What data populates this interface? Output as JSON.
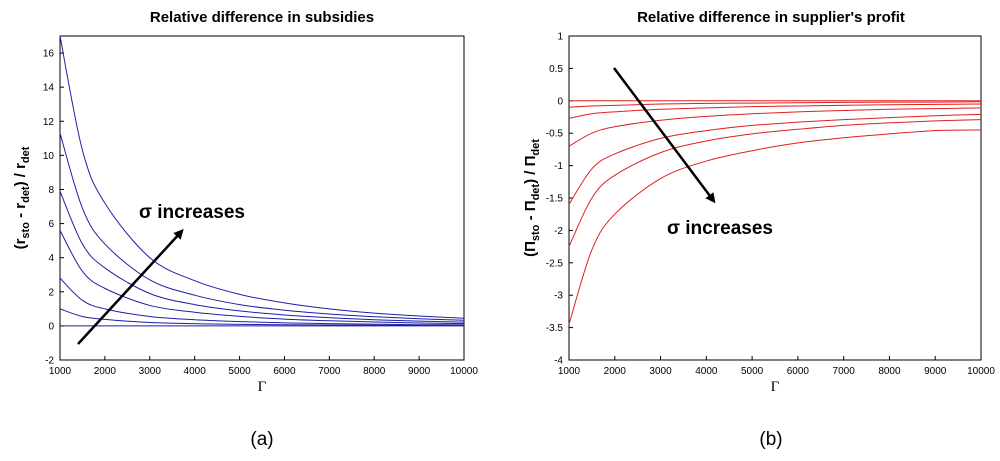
{
  "chart_data": [
    {
      "type": "line",
      "title": "Relative difference in subsidies",
      "xlabel": "Γ",
      "ylabel": {
        "open": "(r",
        "sub1": "sto",
        "mid": " - r",
        "sub2": "det",
        "close": ") / r",
        "sub3": "det"
      },
      "xlim": [
        1000,
        10000
      ],
      "ylim": [
        -2,
        17
      ],
      "xticks": [
        "1000",
        "2000",
        "3000",
        "4000",
        "5000",
        "6000",
        "7000",
        "8000",
        "9000",
        "10000"
      ],
      "yticks": [
        "16",
        "14",
        "12",
        "10",
        "8",
        "6",
        "4",
        "2",
        "0",
        "-2"
      ],
      "line_color": "#1f1fa8",
      "x": [
        1000,
        1500,
        2000,
        3000,
        4000,
        5000,
        6000,
        7000,
        8000,
        9000,
        10000
      ],
      "series": [
        {
          "values": [
            0,
            0,
            0,
            0,
            0,
            0,
            0,
            0,
            0,
            0,
            0
          ]
        },
        {
          "values": [
            1.0,
            0.55,
            0.38,
            0.2,
            0.13,
            0.09,
            0.07,
            0.05,
            0.04,
            0.03,
            0.02
          ]
        },
        {
          "values": [
            2.8,
            1.5,
            1.0,
            0.55,
            0.36,
            0.25,
            0.18,
            0.13,
            0.1,
            0.07,
            0.06
          ]
        },
        {
          "values": [
            5.6,
            3.2,
            2.2,
            1.2,
            0.8,
            0.56,
            0.4,
            0.3,
            0.23,
            0.17,
            0.13
          ]
        },
        {
          "values": [
            7.9,
            4.8,
            3.4,
            1.9,
            1.25,
            0.88,
            0.64,
            0.48,
            0.36,
            0.28,
            0.22
          ]
        },
        {
          "values": [
            11.3,
            6.9,
            4.8,
            2.7,
            1.8,
            1.25,
            0.92,
            0.7,
            0.54,
            0.42,
            0.33
          ]
        },
        {
          "values": [
            17.0,
            10.3,
            7.2,
            4.0,
            2.65,
            1.85,
            1.35,
            1.0,
            0.75,
            0.58,
            0.45
          ]
        }
      ],
      "annotation": "σ increases"
    },
    {
      "type": "line",
      "title": "Relative difference in supplier's profit",
      "xlabel": "Γ",
      "ylabel": {
        "open": "(Π",
        "sub1": "sto",
        "mid": " - Π",
        "sub2": "det",
        "close": ") / Π",
        "sub3": "det"
      },
      "xlim": [
        1000,
        10000
      ],
      "ylim": [
        -4,
        1
      ],
      "xticks": [
        "1000",
        "2000",
        "3000",
        "4000",
        "5000",
        "6000",
        "7000",
        "8000",
        "9000",
        "10000"
      ],
      "yticks": [
        "1",
        "0.5",
        "0",
        "-0.5",
        "-1",
        "-1.5",
        "-2",
        "-2.5",
        "-3",
        "-3.5",
        "-4"
      ],
      "line_color": "#e02020",
      "x": [
        1000,
        1500,
        2000,
        3000,
        4000,
        5000,
        6000,
        7000,
        8000,
        9000,
        10000
      ],
      "series": [
        {
          "values": [
            0,
            0,
            0,
            0,
            0,
            0,
            0,
            0,
            0,
            0,
            0
          ]
        },
        {
          "values": [
            -0.1,
            -0.08,
            -0.07,
            -0.05,
            -0.04,
            -0.035,
            -0.03,
            -0.025,
            -0.02,
            -0.02,
            -0.015
          ]
        },
        {
          "values": [
            -0.27,
            -0.2,
            -0.17,
            -0.13,
            -0.11,
            -0.09,
            -0.08,
            -0.07,
            -0.06,
            -0.055,
            -0.05
          ]
        },
        {
          "values": [
            -0.7,
            -0.5,
            -0.4,
            -0.3,
            -0.24,
            -0.2,
            -0.17,
            -0.15,
            -0.13,
            -0.12,
            -0.11
          ]
        },
        {
          "values": [
            -1.6,
            -1.05,
            -0.82,
            -0.58,
            -0.46,
            -0.38,
            -0.33,
            -0.29,
            -0.26,
            -0.23,
            -0.21
          ]
        },
        {
          "values": [
            -2.25,
            -1.5,
            -1.15,
            -0.8,
            -0.62,
            -0.51,
            -0.44,
            -0.38,
            -0.34,
            -0.31,
            -0.29
          ]
        },
        {
          "values": [
            -3.45,
            -2.3,
            -1.75,
            -1.2,
            -0.93,
            -0.77,
            -0.65,
            -0.57,
            -0.51,
            -0.46,
            -0.45
          ]
        }
      ],
      "annotation": "σ increases"
    }
  ],
  "captions": [
    "(a)",
    "(b)"
  ]
}
